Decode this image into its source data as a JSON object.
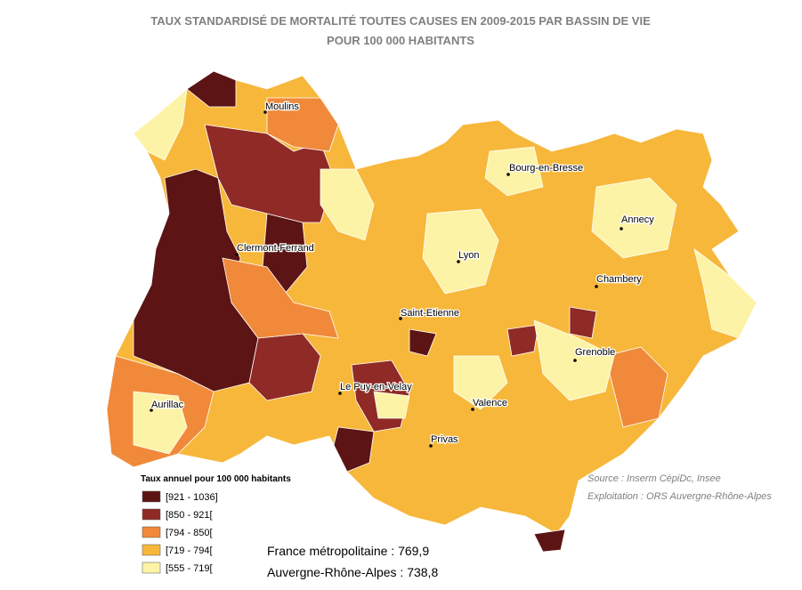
{
  "title": [
    "TAUX STANDARDISÉ DE MORTALITÉ TOUTES CAUSES EN 2009-2015 PAR BASSIN DE VIE",
    "POUR 100 000 HABITANTS"
  ],
  "cities": [
    "Moulins",
    "Bourg-en-Bresse",
    "Annecy",
    "Clermont-Ferrand",
    "Lyon",
    "Chambery",
    "Saint-Etienne",
    "Grenoble",
    "Le Puy-en-Velay",
    "Aurillac",
    "Valence",
    "Privas"
  ],
  "legend": {
    "title": "Taux annuel pour 100 000 habitants",
    "items": [
      {
        "label": "[921 - 1036]",
        "color": "#5c1414"
      },
      {
        "label": "[850 - 921[",
        "color": "#8f2a26"
      },
      {
        "label": "[794 - 850[",
        "color": "#f0893a"
      },
      {
        "label": "[719 - 794[",
        "color": "#f7b73a"
      },
      {
        "label": "[555 - 719[",
        "color": "#fdf3a6"
      }
    ]
  },
  "source": [
    "Source : Inserm CépiDc, Insee",
    "Exploitation : ORS Auvergne-Rhône-Alpes"
  ],
  "reference": [
    "France métropolitaine : 769,9",
    "Auvergne-Rhône-Alpes : 738,8"
  ]
}
